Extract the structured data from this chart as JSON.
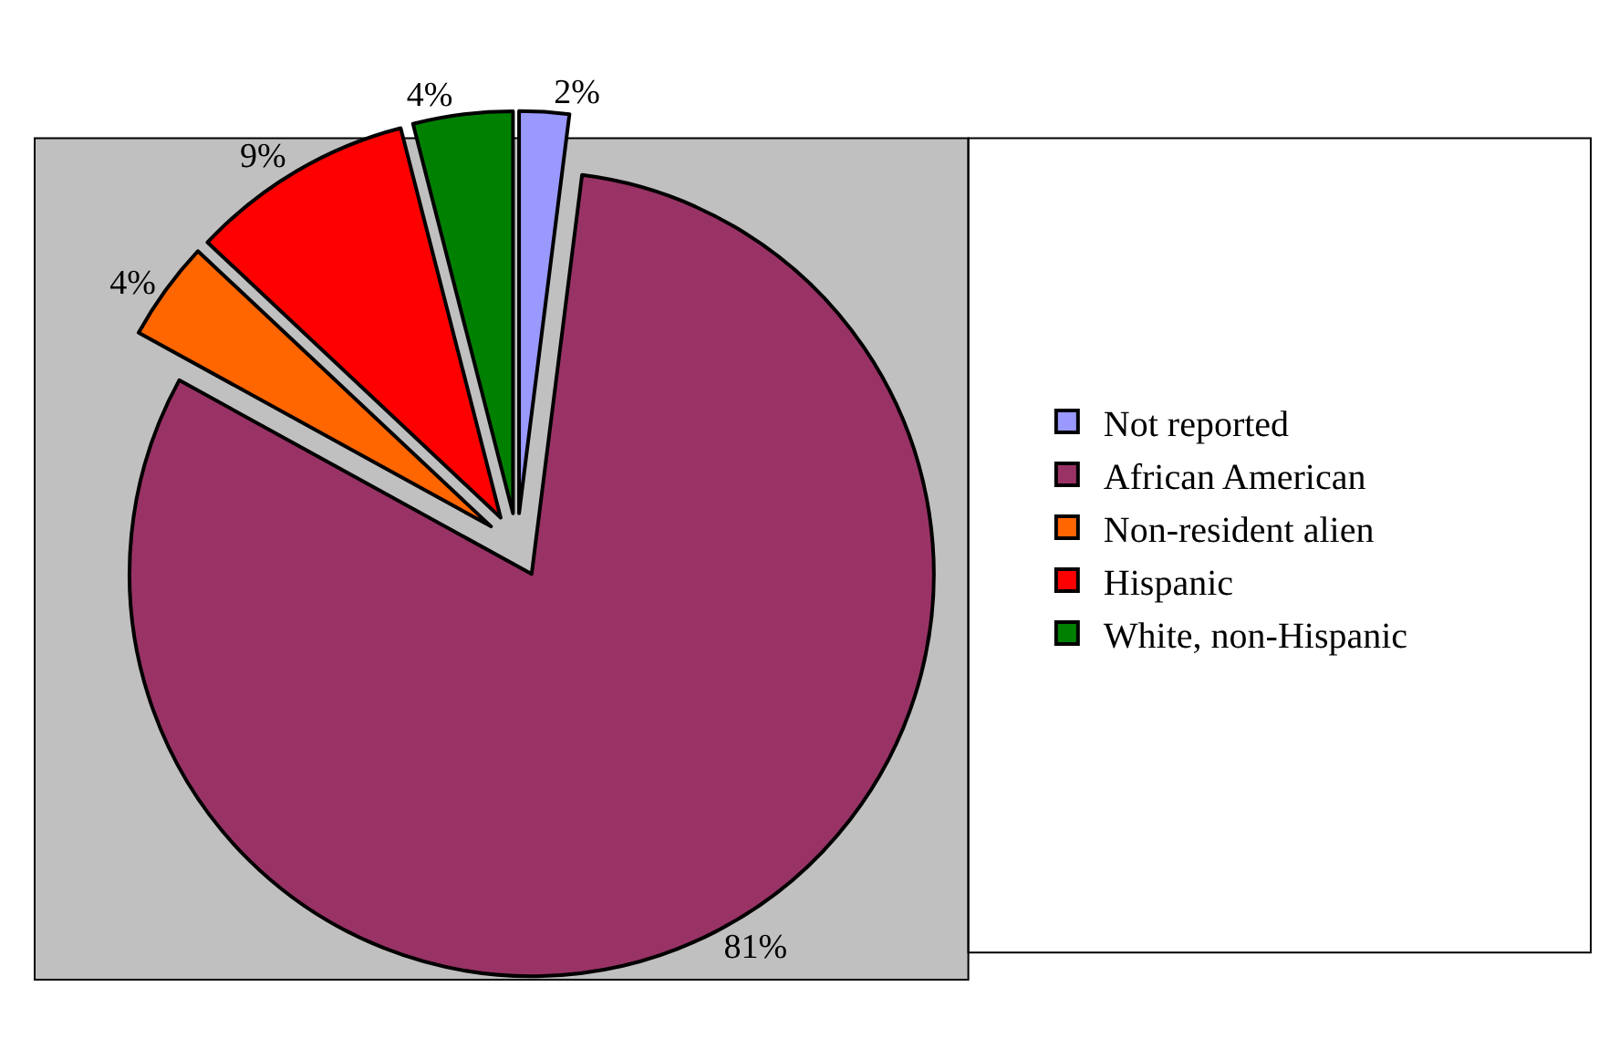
{
  "chart_data": {
    "type": "pie",
    "categories": [
      "Not reported",
      "African American",
      "Non-resident alien",
      "Hispanic",
      "White, non-Hispanic"
    ],
    "values": [
      2,
      81,
      4,
      9,
      4
    ],
    "colors": [
      "#9999ff",
      "#993366",
      "#ff6600",
      "#ff0000",
      "#008000"
    ],
    "value_labels": [
      "2%",
      "81%",
      "4%",
      "9%",
      "4%"
    ],
    "legend": "right"
  }
}
